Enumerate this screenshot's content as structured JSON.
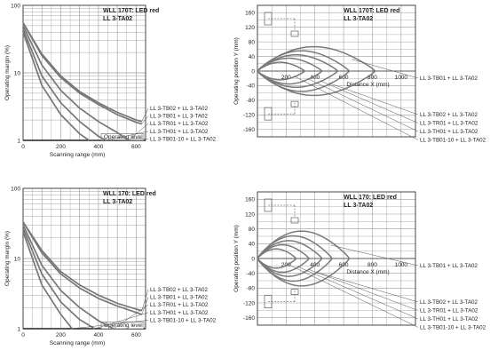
{
  "chart_data": [
    {
      "type": "line",
      "title": "WLL 170T: LED red",
      "subtitle": "LL 3-TA02",
      "xlabel": "Scanning range (mm)",
      "ylabel": "Operating margin (%)",
      "xlim": [
        0,
        650
      ],
      "ylim": [
        1,
        100
      ],
      "yscale": "log",
      "x_ticks": [
        "0",
        "200",
        "400",
        "600"
      ],
      "y_ticks": [
        "1",
        "10",
        "100"
      ],
      "reference_label": "Operating level",
      "series": [
        {
          "name": "LL 3-TB02 + LL 3-TA02",
          "x": [
            0,
            100,
            200,
            300,
            400,
            500,
            600,
            630
          ],
          "y": [
            55,
            19,
            9,
            5.3,
            3.6,
            2.6,
            2.0,
            1.9
          ]
        },
        {
          "name": "LL 3-TB01 + LL 3-TA02",
          "x": [
            0,
            100,
            200,
            300,
            400,
            500,
            600,
            630
          ],
          "y": [
            55,
            18,
            8.5,
            5,
            3.4,
            2.4,
            1.85,
            1.75
          ]
        },
        {
          "name": "LL 3-TR01 + LL 3-TA02",
          "x": [
            0,
            100,
            200,
            300,
            400,
            500,
            560
          ],
          "y": [
            50,
            13,
            5.5,
            3,
            1.9,
            1.3,
            1.0
          ]
        },
        {
          "name": "LL 3-TH01 + LL 3-TA02",
          "x": [
            0,
            100,
            200,
            300,
            400,
            440
          ],
          "y": [
            45,
            9,
            3.6,
            1.9,
            1.15,
            1.0
          ]
        },
        {
          "name": "LL 3-TB01-10 + LL 3-TA02",
          "x": [
            0,
            100,
            200,
            300,
            350
          ],
          "y": [
            40,
            6.5,
            2.4,
            1.25,
            1.0
          ]
        }
      ]
    },
    {
      "type": "line",
      "title": "WLL 170T: LED red",
      "subtitle": "LL 3-TA02",
      "xlabel": "Distance X (mm)",
      "ylabel": "Operating position Y (mm)",
      "xlim": [
        0,
        1100
      ],
      "ylim": [
        -180,
        180
      ],
      "x_ticks": [
        "200",
        "400",
        "600",
        "800",
        "1000"
      ],
      "y_ticks": [
        "160",
        "120",
        "80",
        "40",
        "0",
        "-40",
        "-80",
        "-120",
        "-160"
      ],
      "series": [
        {
          "name": "LL 3-TB01 + LL 3-TA02",
          "length": 820,
          "halfwidth": 72
        },
        {
          "name": "LL 3-TB02 + LL 3-TA02",
          "length": 640,
          "halfwidth": 60
        },
        {
          "name": "LL 3-TR01 + LL 3-TA02",
          "length": 560,
          "halfwidth": 48
        },
        {
          "name": "LL 3-TH01 + LL 3-TA02",
          "length": 450,
          "halfwidth": 38
        },
        {
          "name": "LL 3-TB01-10 + LL 3-TA02",
          "length": 330,
          "halfwidth": 26
        }
      ]
    },
    {
      "type": "line",
      "title": "WLL 170: LED red",
      "subtitle": "LL 3-TA02",
      "xlabel": "Scanning range (mm)",
      "ylabel": "Operating margin (%)",
      "xlim": [
        0,
        650
      ],
      "ylim": [
        1,
        100
      ],
      "yscale": "log",
      "x_ticks": [
        "0",
        "200",
        "400",
        "600"
      ],
      "y_ticks": [
        "1",
        "10",
        "100"
      ],
      "reference_label": "Operating level",
      "series": [
        {
          "name": "LL 3-TB02 + LL 3-TA02",
          "x": [
            0,
            100,
            200,
            300,
            400,
            500,
            600,
            630
          ],
          "y": [
            33,
            13,
            6.5,
            4.2,
            3.0,
            2.3,
            1.9,
            1.8
          ]
        },
        {
          "name": "LL 3-TB01 + LL 3-TA02",
          "x": [
            0,
            100,
            200,
            300,
            400,
            500,
            600,
            630
          ],
          "y": [
            33,
            12,
            6,
            3.8,
            2.7,
            2.1,
            1.7,
            1.6
          ]
        },
        {
          "name": "LL 3-TR01 + LL 3-TA02",
          "x": [
            0,
            100,
            200,
            300,
            400,
            480
          ],
          "y": [
            30,
            8,
            3.5,
            2.0,
            1.3,
            1.0
          ]
        },
        {
          "name": "LL 3-TH01 + LL 3-TA02",
          "x": [
            0,
            100,
            200,
            300,
            380
          ],
          "y": [
            27,
            6,
            2.4,
            1.35,
            1.0
          ]
        },
        {
          "name": "LL 3-TB01-10 + LL 3-TA02",
          "x": [
            0,
            100,
            200,
            260
          ],
          "y": [
            24,
            4.2,
            1.6,
            1.0
          ]
        }
      ]
    },
    {
      "type": "line",
      "title": "WLL 170: LED red",
      "subtitle": "LL 3-TA02",
      "xlabel": "Distance X (mm)",
      "ylabel": "Operating position Y (mm)",
      "xlim": [
        0,
        1100
      ],
      "ylim": [
        -180,
        180
      ],
      "x_ticks": [
        "200",
        "400",
        "600",
        "800",
        "1000"
      ],
      "y_ticks": [
        "160",
        "120",
        "80",
        "40",
        "0",
        "-40",
        "-80",
        "-120",
        "-160"
      ],
      "series": [
        {
          "name": "LL 3-TB01 + LL 3-TA02",
          "length": 640,
          "halfwidth": 80
        },
        {
          "name": "LL 3-TB02 + LL 3-TA02",
          "length": 520,
          "halfwidth": 66
        },
        {
          "name": "LL 3-TR01 + LL 3-TA02",
          "length": 450,
          "halfwidth": 52
        },
        {
          "name": "LL 3-TH01 + LL 3-TA02",
          "length": 360,
          "halfwidth": 40
        },
        {
          "name": "LL 3-TB01-10 + LL 3-TA02",
          "length": 270,
          "halfwidth": 28
        }
      ]
    }
  ]
}
